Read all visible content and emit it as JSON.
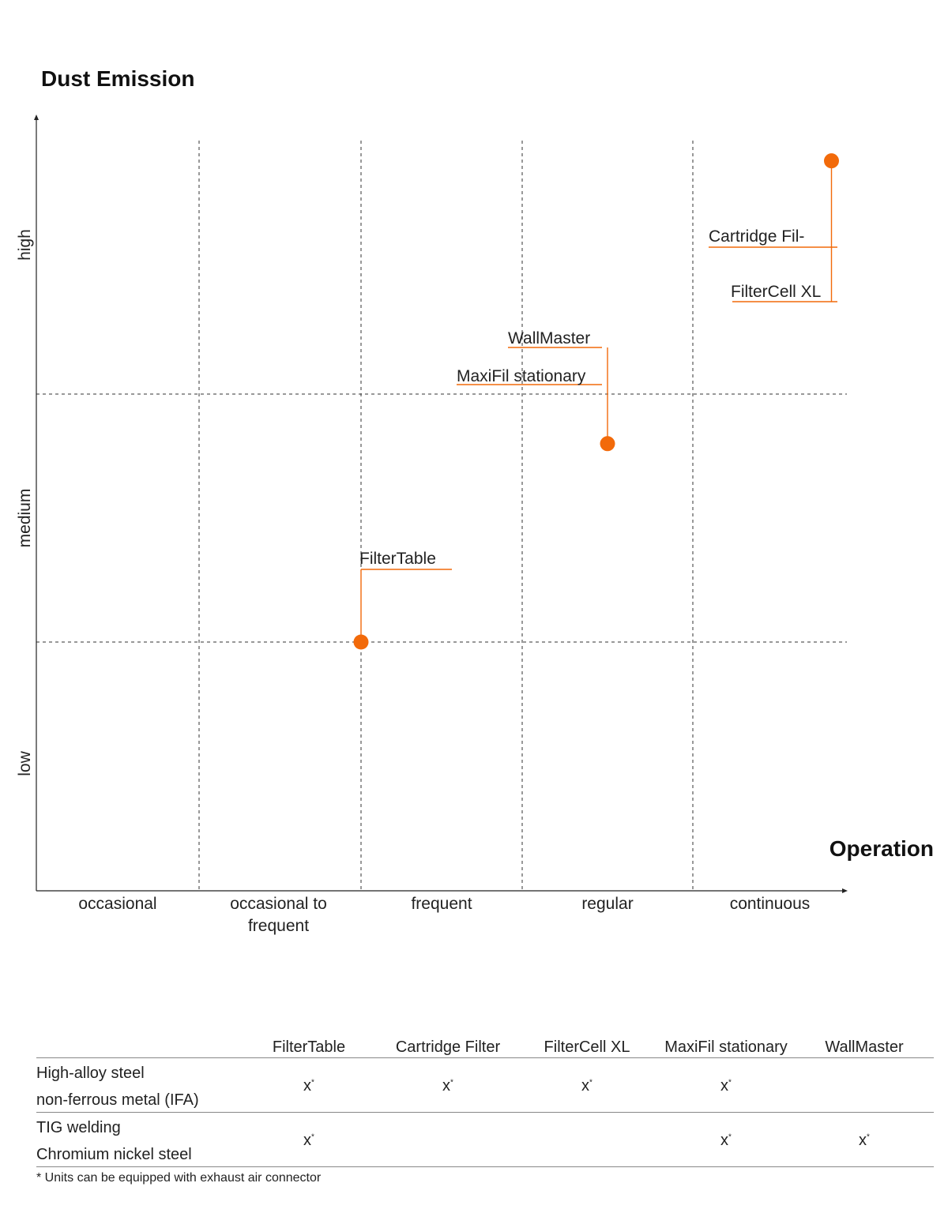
{
  "chart_data": {
    "type": "scatter",
    "title": "Dust Emission",
    "xlabel": "Operation",
    "ylabel": "",
    "x_categories": [
      "occasional",
      "occasional to frequent",
      "frequent",
      "regular",
      "continuous"
    ],
    "y_categories": [
      "low",
      "medium",
      "high"
    ],
    "points": [
      {
        "x": 2.0,
        "y": 1.0,
        "labels": [
          "FilterTable"
        ]
      },
      {
        "x": 3.5,
        "y": 1.8,
        "labels": [
          "WallMaster",
          "MaxiFil stationary"
        ]
      },
      {
        "x": 4.9,
        "y": 2.92,
        "labels": [
          "Cartridge Fil-",
          "FilterCell XL"
        ]
      }
    ],
    "point_color": "#f26a0a",
    "grid": true
  },
  "table": {
    "headers": [
      "FilterTable",
      "Cartridge Filter",
      "FilterCell XL",
      "MaxiFil stationary",
      "WallMaster"
    ],
    "rows": [
      {
        "line1": "High-alloy steel",
        "line2": "non-ferrous metal (IFA)",
        "cells": [
          "x",
          "x",
          "x",
          "x",
          ""
        ]
      },
      {
        "line1": "TIG welding",
        "line2": "Chromium nickel steel",
        "cells": [
          "x",
          "",
          "",
          "x",
          "x"
        ]
      }
    ],
    "mark_suffix": "*"
  },
  "footnote": "* Units can be equipped with exhaust air connector"
}
